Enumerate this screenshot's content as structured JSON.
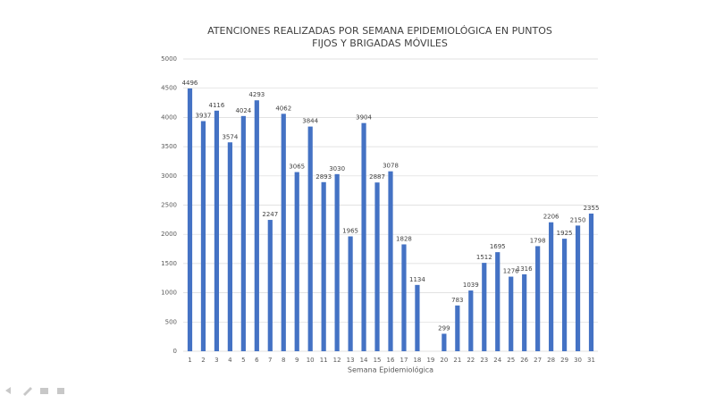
{
  "chart_data": {
    "type": "bar",
    "title": [
      "ATENCIONES REALIZADAS POR SEMANA EPIDEMIOLÓGICA EN PUNTOS",
      "FIJOS Y BRIGADAS MÓVILES"
    ],
    "x_label": "Semana Epidemiológica",
    "categories": [
      "1",
      "2",
      "3",
      "4",
      "5",
      "6",
      "7",
      "8",
      "9",
      "10",
      "11",
      "12",
      "13",
      "14",
      "15",
      "16",
      "17",
      "18",
      "19",
      "20",
      "21",
      "22",
      "23",
      "24",
      "25",
      "26",
      "27",
      "28",
      "29",
      "30",
      "31"
    ],
    "values": [
      4496,
      3937,
      4116,
      3574,
      4024,
      4293,
      2247,
      4062,
      3065,
      3844,
      2893,
      3030,
      1965,
      3904,
      2887,
      3078,
      1828,
      1134,
      null,
      299,
      783,
      1039,
      1512,
      1695,
      1276,
      1316,
      1798,
      2206,
      1925,
      2150,
      2355
    ],
    "color": "#4472c4",
    "ylim": [
      0,
      5000
    ],
    "yticks": [
      0,
      500,
      1000,
      1500,
      2000,
      2500,
      3000,
      3500,
      4000,
      4500,
      5000
    ],
    "grid": true
  }
}
